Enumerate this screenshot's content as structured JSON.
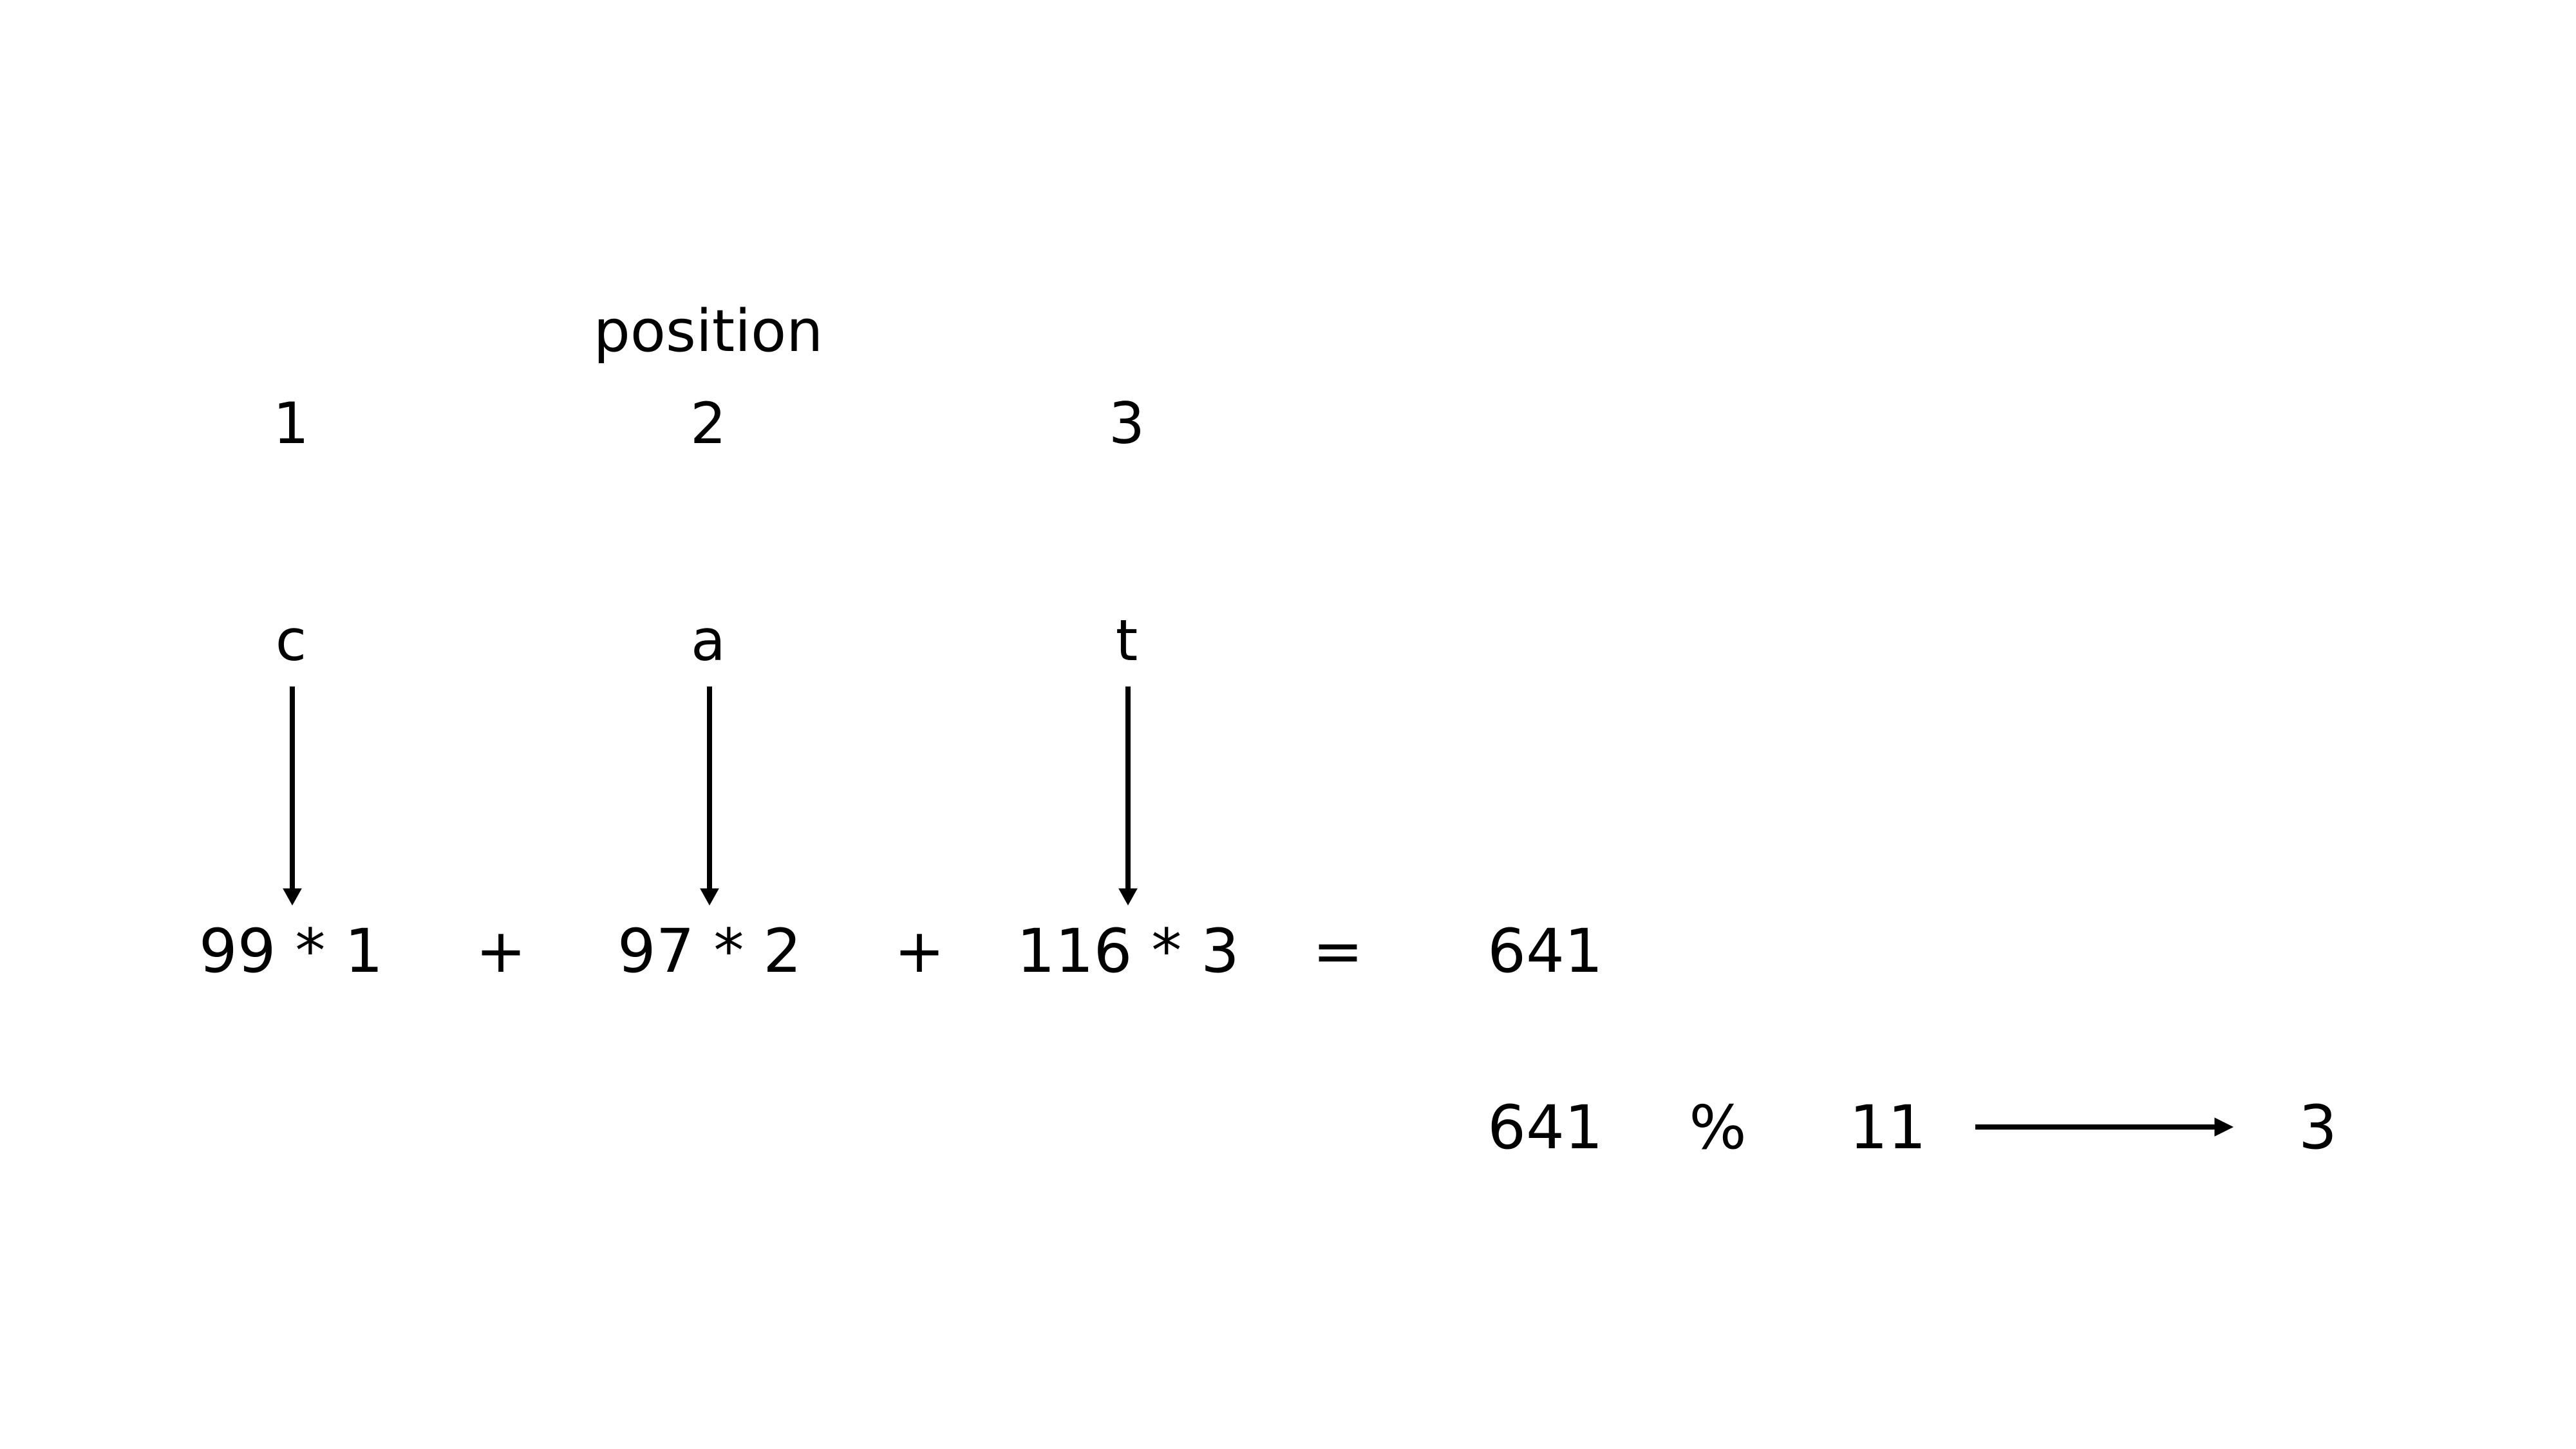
{
  "diagram": {
    "position_label": "position",
    "positions": [
      "1",
      "2",
      "3"
    ],
    "letters": [
      "c",
      "a",
      "t"
    ],
    "terms": [
      "99 * 1",
      "97 * 2",
      "116 * 3"
    ],
    "plus_signs": [
      "+",
      "+"
    ],
    "equals": "=",
    "sum": "641",
    "modulo": {
      "operand": "641",
      "operator": "%",
      "divisor": "11",
      "result": "3"
    },
    "colors": {
      "text": "#000000",
      "arrow": "#000000",
      "background": "#ffffff"
    }
  }
}
